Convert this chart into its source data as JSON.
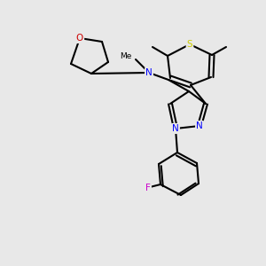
{
  "background_color": "#e8e8e8",
  "bond_color": "#000000",
  "bond_lw": 1.5,
  "atom_colors": {
    "N": "#0000ff",
    "O": "#cc0000",
    "S": "#cccc00",
    "F": "#cc00cc",
    "C": "#000000"
  },
  "font_size": 7.5
}
